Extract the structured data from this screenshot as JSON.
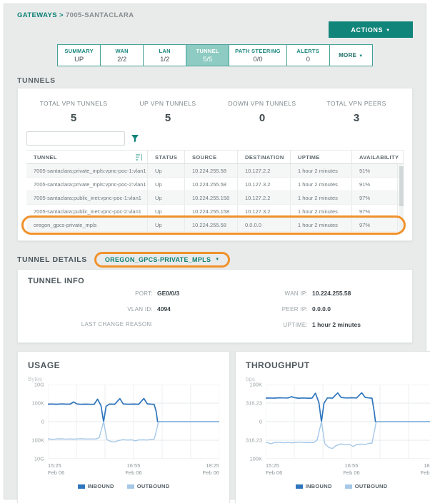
{
  "ui": {
    "caret": "▼"
  },
  "colors": {
    "teal": "#11857a",
    "teal_tab_active": "#8ecbc2",
    "orange_annotation": "#f0922b",
    "inbound": "#2e75bd",
    "outbound": "#a5c8e8"
  },
  "breadcrumb": {
    "link": "GATEWAYS",
    "separator": ">",
    "item": "7005-SANTACLARA"
  },
  "actions_button": "ACTIONS",
  "tabs": [
    {
      "label": "SUMMARY",
      "value": "UP",
      "active": false
    },
    {
      "label": "WAN",
      "value": "2/2",
      "active": false
    },
    {
      "label": "LAN",
      "value": "1/2",
      "active": false
    },
    {
      "label": "TUNNEL",
      "value": "5/5",
      "active": true
    },
    {
      "label": "PATH STEERING",
      "value": "0/0",
      "active": false
    },
    {
      "label": "ALERTS",
      "value": "0",
      "active": false
    },
    {
      "label": "MORE",
      "value": null,
      "caret": true,
      "active": false
    }
  ],
  "tunnels": {
    "section_title": "TUNNELS",
    "stats": [
      {
        "label": "TOTAL VPN TUNNELS",
        "value": "5"
      },
      {
        "label": "UP VPN TUNNELS",
        "value": "5"
      },
      {
        "label": "DOWN VPN TUNNELS",
        "value": "0"
      },
      {
        "label": "TOTAL VPN PEERS",
        "value": "3"
      }
    ],
    "search_placeholder": "",
    "table": {
      "columns": [
        "TUNNEL",
        "STATUS",
        "SOURCE",
        "DESTINATION",
        "UPTIME",
        "AVAILABILITY"
      ],
      "rows": [
        [
          "7005-santaclara:private_mpls:vpnc-poc-1:vlan1",
          "Up",
          "10.224.255.58",
          "10.127.2.2",
          "1 hour 2 minutes",
          "91%"
        ],
        [
          "7005-santaclara:private_mpls:vpnc-poc-2:vlan1",
          "Up",
          "10.224.255.58",
          "10.127.3.2",
          "1 hour 2 minutes",
          "91%"
        ],
        [
          "7005-santaclara:public_inet:vpnc-poc-1:vlan1",
          "Up",
          "10.224.255.158",
          "10.127.2.2",
          "1 hour 2 minutes",
          "97%"
        ],
        [
          "7005-santaclara:public_inet:vpnc-poc-2:vlan1",
          "Up",
          "10.224.255.158",
          "10.127.3.2",
          "1 hour 2 minutes",
          "97%"
        ],
        [
          "oregon_gpcs-private_mpls",
          "Up",
          "10.224.255.58",
          "0.0.0.0",
          "1 hour 2 minutes",
          "97%"
        ]
      ],
      "highlighted_row_index": 4
    }
  },
  "tunnel_details": {
    "section_title": "TUNNEL DETAILS",
    "selector": "OREGON_GPCS-PRIVATE_MPLS",
    "info_title": "TUNNEL INFO",
    "fields_left": [
      {
        "label": "PORT:",
        "value": "GE0/0/3"
      },
      {
        "label": "VLAN ID:",
        "value": "4094"
      },
      {
        "label": "LAST CHANGE REASON:",
        "value": ""
      }
    ],
    "fields_right": [
      {
        "label": "WAN IP:",
        "value": "10.224.255.58"
      },
      {
        "label": "PEER IP:",
        "value": "0.0.0.0"
      },
      {
        "label": "UPTIME:",
        "value": "1 hour 2 minutes"
      }
    ]
  },
  "chart_data": [
    {
      "type": "line",
      "title": "USAGE",
      "ylabel": "Bytes",
      "y_scale": "symlog",
      "log_divisor": 5,
      "y_ticks": [
        "10G",
        "100K",
        "0",
        "100K",
        "10G"
      ],
      "x_ticks": [
        {
          "time": "15:25",
          "date": "Feb 06"
        },
        {
          "time": "16:55",
          "date": "Feb 06"
        },
        {
          "time": "18:25",
          "date": "Feb 06"
        }
      ],
      "legend": [
        "INBOUND",
        "OUTBOUND"
      ],
      "series": [
        {
          "name": "INBOUND",
          "color": "#2e75bd",
          "points": [
            [
              0.0,
              52000
            ],
            [
              0.02,
              56000
            ],
            [
              0.05,
              50000
            ],
            [
              0.08,
              58000
            ],
            [
              0.1,
              54000
            ],
            [
              0.13,
              52000
            ],
            [
              0.15,
              200000
            ],
            [
              0.17,
              60000
            ],
            [
              0.19,
              48000
            ],
            [
              0.22,
              52000
            ],
            [
              0.25,
              47000
            ],
            [
              0.27,
              50000
            ],
            [
              0.29,
              1200000
            ],
            [
              0.31,
              20000
            ],
            [
              0.325,
              0
            ],
            [
              0.34,
              15000
            ],
            [
              0.36,
              55000
            ],
            [
              0.39,
              50000
            ],
            [
              0.42,
              1600000
            ],
            [
              0.44,
              60000
            ],
            [
              0.47,
              50000
            ],
            [
              0.5,
              55000
            ],
            [
              0.53,
              50000
            ],
            [
              0.56,
              1800000
            ],
            [
              0.58,
              65000
            ],
            [
              0.6,
              52000
            ],
            [
              0.62,
              48000
            ],
            [
              0.632,
              500
            ],
            [
              0.64,
              0
            ],
            [
              0.8,
              0
            ],
            [
              1.0,
              0
            ]
          ]
        },
        {
          "name": "OUTBOUND",
          "color": "#a5c8e8",
          "points": [
            [
              0.0,
              -42000
            ],
            [
              0.03,
              -60000
            ],
            [
              0.05,
              -45000
            ],
            [
              0.08,
              -42000
            ],
            [
              0.1,
              -50000
            ],
            [
              0.13,
              -46000
            ],
            [
              0.15,
              -52000
            ],
            [
              0.18,
              -44000
            ],
            [
              0.2,
              -42000
            ],
            [
              0.23,
              -48000
            ],
            [
              0.25,
              -45000
            ],
            [
              0.28,
              -47000
            ],
            [
              0.3,
              -20000
            ],
            [
              0.325,
              0
            ],
            [
              0.345,
              -70000
            ],
            [
              0.37,
              -250000
            ],
            [
              0.39,
              -320000
            ],
            [
              0.41,
              -130000
            ],
            [
              0.44,
              -70000
            ],
            [
              0.46,
              -90000
            ],
            [
              0.49,
              -80000
            ],
            [
              0.51,
              -150000
            ],
            [
              0.53,
              -85000
            ],
            [
              0.56,
              -75000
            ],
            [
              0.58,
              -90000
            ],
            [
              0.6,
              -60000
            ],
            [
              0.62,
              -55000
            ],
            [
              0.632,
              -500
            ],
            [
              0.645,
              0
            ],
            [
              0.8,
              0
            ],
            [
              1.0,
              0
            ]
          ]
        }
      ]
    },
    {
      "type": "line",
      "title": "THROUGHPUT",
      "ylabel": "bps",
      "y_scale": "symlog",
      "log_divisor": 2.5,
      "y_ticks": [
        "100K",
        "316.23",
        "0",
        "316.23",
        "100K"
      ],
      "x_ticks": [
        {
          "time": "15:25",
          "date": "Feb 06"
        },
        {
          "time": "16:55",
          "date": "Feb 06"
        },
        {
          "time": "18:25",
          "date": "Feb 06"
        }
      ],
      "legend": [
        "INBOUND",
        "OUTBOUND"
      ],
      "series": [
        {
          "name": "INBOUND",
          "color": "#2e75bd",
          "points": [
            [
              0.0,
              1500
            ],
            [
              0.02,
              1550
            ],
            [
              0.05,
              1500
            ],
            [
              0.08,
              1650
            ],
            [
              0.1,
              1600
            ],
            [
              0.13,
              1550
            ],
            [
              0.15,
              2300
            ],
            [
              0.17,
              1700
            ],
            [
              0.19,
              1450
            ],
            [
              0.22,
              1550
            ],
            [
              0.25,
              1450
            ],
            [
              0.27,
              1500
            ],
            [
              0.29,
              6800
            ],
            [
              0.31,
              400
            ],
            [
              0.325,
              0
            ],
            [
              0.34,
              300
            ],
            [
              0.36,
              1600
            ],
            [
              0.39,
              1500
            ],
            [
              0.42,
              7500
            ],
            [
              0.44,
              1800
            ],
            [
              0.47,
              1550
            ],
            [
              0.5,
              1650
            ],
            [
              0.53,
              1550
            ],
            [
              0.56,
              7800
            ],
            [
              0.58,
              1900
            ],
            [
              0.6,
              1600
            ],
            [
              0.62,
              1450
            ],
            [
              0.632,
              30
            ],
            [
              0.64,
              0
            ],
            [
              0.8,
              0
            ],
            [
              1.0,
              0
            ]
          ]
        },
        {
          "name": "OUTBOUND",
          "color": "#a5c8e8",
          "points": [
            [
              0.0,
              -550
            ],
            [
              0.03,
              -950
            ],
            [
              0.05,
              -650
            ],
            [
              0.08,
              -600
            ],
            [
              0.1,
              -700
            ],
            [
              0.13,
              -640
            ],
            [
              0.15,
              -720
            ],
            [
              0.18,
              -620
            ],
            [
              0.2,
              -580
            ],
            [
              0.23,
              -660
            ],
            [
              0.25,
              -620
            ],
            [
              0.28,
              -650
            ],
            [
              0.3,
              -300
            ],
            [
              0.325,
              0
            ],
            [
              0.345,
              -1000
            ],
            [
              0.37,
              -3200
            ],
            [
              0.39,
              -4000
            ],
            [
              0.41,
              -1700
            ],
            [
              0.44,
              -1000
            ],
            [
              0.46,
              -1300
            ],
            [
              0.49,
              -1150
            ],
            [
              0.51,
              -2200
            ],
            [
              0.53,
              -1200
            ],
            [
              0.56,
              -1050
            ],
            [
              0.58,
              -1200
            ],
            [
              0.6,
              -850
            ],
            [
              0.62,
              -780
            ],
            [
              0.632,
              -30
            ],
            [
              0.645,
              0
            ],
            [
              0.8,
              0
            ],
            [
              1.0,
              0
            ]
          ]
        }
      ]
    }
  ]
}
